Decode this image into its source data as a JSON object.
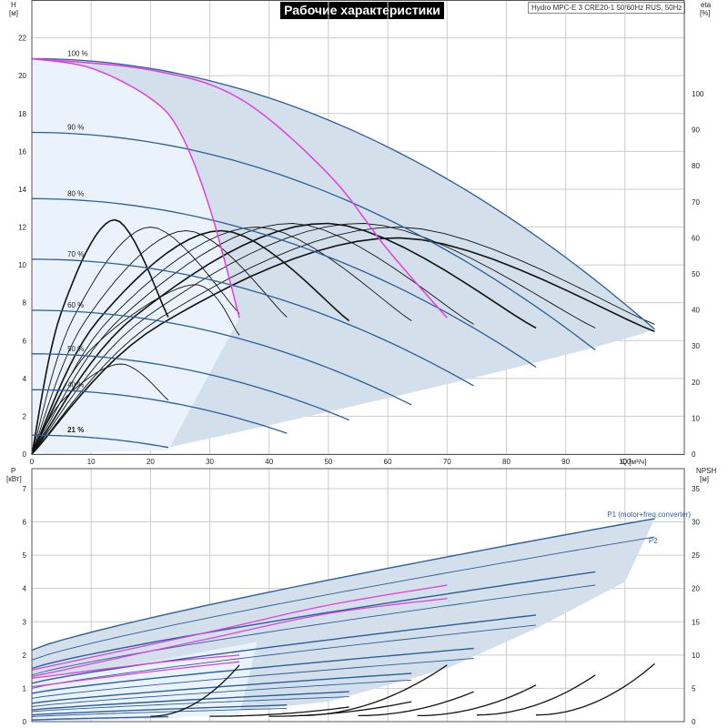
{
  "header": {
    "title": "Рабочие характеристики",
    "product": "Hydro MPC-E 3 CRE20-1 50/60Hz RUS, 50Hz"
  },
  "colors": {
    "envelope_fill": "#d3dfea",
    "light_zone_fill": "#eaf3fb",
    "curve_blue": "#2b5e9a",
    "curve_magenta": "#e040e0",
    "curve_black": "#111111",
    "grid": "#cccccc"
  },
  "chart_data": [
    {
      "type": "line",
      "name": "head-eta",
      "x_axis": {
        "label": "Q [м³/ч]",
        "ticks": [
          0,
          10,
          20,
          30,
          40,
          50,
          60,
          70,
          80,
          90,
          100
        ],
        "range": [
          0,
          110
        ]
      },
      "y_axis_left": {
        "label_line1": "H",
        "label_line2": "[м]",
        "ticks": [
          0,
          2,
          4,
          6,
          8,
          10,
          12,
          14,
          16,
          18,
          20,
          22
        ],
        "range": [
          0,
          24
        ]
      },
      "y_axis_right": {
        "label_line1": "eta",
        "label_line2": "[%]",
        "ticks": [
          0,
          10,
          20,
          30,
          40,
          50,
          60,
          70,
          80,
          90,
          100
        ],
        "range": [
          0,
          126
        ]
      },
      "speed_labels": [
        {
          "text": "100 %",
          "h": 20.9
        },
        {
          "text": "90 %",
          "h": 17.0
        },
        {
          "text": "80 %",
          "h": 13.5
        },
        {
          "text": "70 %",
          "h": 10.3
        },
        {
          "text": "60 %",
          "h": 7.6
        },
        {
          "text": "50 %",
          "h": 5.3
        },
        {
          "text": "40 %",
          "h": 3.4
        },
        {
          "text": "21 %",
          "h": 1.0,
          "bold": true
        }
      ],
      "pump_curves": [
        {
          "speed": 1.0,
          "shutoff_h": 20.9,
          "q_max": 105,
          "h_end": 6.6
        },
        {
          "speed": 0.9,
          "shutoff_h": 17.0,
          "q_max": 95,
          "h_end": 5.5
        },
        {
          "speed": 0.8,
          "shutoff_h": 13.5,
          "q_max": 85,
          "h_end": 4.6
        },
        {
          "speed": 0.7,
          "shutoff_h": 10.3,
          "q_max": 74.5,
          "h_end": 3.6
        },
        {
          "speed": 0.6,
          "shutoff_h": 7.6,
          "q_max": 64,
          "h_end": 2.6
        },
        {
          "speed": 0.5,
          "shutoff_h": 5.3,
          "q_max": 53.5,
          "h_end": 1.8
        },
        {
          "speed": 0.4,
          "shutoff_h": 3.4,
          "q_max": 43,
          "h_end": 1.1
        },
        {
          "speed": 0.21,
          "shutoff_h": 1.0,
          "q_max": 23,
          "h_end": 0.35
        }
      ],
      "magenta_curves": [
        {
          "points": [
            [
              0,
              20.9
            ],
            [
              10,
              20.4
            ],
            [
              20,
              18.8
            ],
            [
              25,
              17.0
            ],
            [
              30,
              13.0
            ],
            [
              35,
              7.2
            ]
          ]
        },
        {
          "points": [
            [
              0,
              20.9
            ],
            [
              20,
              20.3
            ],
            [
              35,
              18.8
            ],
            [
              50,
              14.8
            ],
            [
              60,
              10.8
            ],
            [
              70,
              7.2
            ]
          ]
        }
      ],
      "eta_curves": [
        {
          "q_end": 23,
          "eta_peak": 65,
          "q_peak": 14,
          "eta_end": 38
        },
        {
          "q_end": 35,
          "eta_peak": 63,
          "q_peak": 20,
          "eta_end": 39
        },
        {
          "q_end": 43,
          "eta_peak": 62,
          "q_peak": 26,
          "eta_end": 38
        },
        {
          "q_end": 53.5,
          "eta_peak": 62,
          "q_peak": 32,
          "eta_end": 37
        },
        {
          "q_end": 64,
          "eta_peak": 63,
          "q_peak": 38,
          "eta_end": 37
        },
        {
          "q_end": 74.5,
          "eta_peak": 64,
          "q_peak": 44,
          "eta_end": 36
        },
        {
          "q_end": 85,
          "eta_peak": 64,
          "q_peak": 50,
          "eta_end": 35
        },
        {
          "q_end": 95,
          "eta_peak": 64,
          "q_peak": 56,
          "eta_end": 35
        },
        {
          "q_end": 105,
          "eta_peak": 63,
          "q_peak": 62,
          "eta_end": 36
        },
        {
          "q_end": 105,
          "eta_peak": 60,
          "q_peak": 62,
          "eta_end": 34
        },
        {
          "q_end": 35,
          "eta_peak": 47,
          "q_peak": 27,
          "eta_end": 33
        },
        {
          "q_end": 23,
          "eta_peak": 25,
          "q_peak": 15,
          "eta_end": 15
        }
      ]
    },
    {
      "type": "line",
      "name": "power-npsh",
      "x_axis": {
        "ticks": [],
        "range": [
          0,
          110
        ]
      },
      "y_axis_left": {
        "label_line1": "P",
        "label_line2": "[кВт]",
        "ticks": [
          0,
          1,
          2,
          3,
          4,
          5,
          6,
          7
        ],
        "range": [
          0,
          7.6
        ]
      },
      "y_axis_right": {
        "label_line1": "NPSH",
        "label_line2": "[м]",
        "ticks": [
          0,
          5,
          10,
          15,
          20,
          25,
          30,
          35
        ],
        "range": [
          0,
          38
        ]
      },
      "series_labels": [
        {
          "text": "P1 (motor+freq.converter)",
          "q": 97,
          "p": 6.1
        },
        {
          "text": "P2",
          "q": 104,
          "p": 5.3
        }
      ],
      "power_curves": [
        {
          "q_end": 105,
          "p0": 2.15,
          "p_end": 6.1
        },
        {
          "q_end": 105,
          "p0": 1.85,
          "p_end": 5.55
        },
        {
          "q_end": 95,
          "p0": 1.6,
          "p_end": 4.5
        },
        {
          "q_end": 95,
          "p0": 1.4,
          "p_end": 4.1
        },
        {
          "q_end": 85,
          "p0": 1.15,
          "p_end": 3.2
        },
        {
          "q_end": 85,
          "p0": 1.0,
          "p_end": 2.9
        },
        {
          "q_end": 74.5,
          "p0": 0.85,
          "p_end": 2.2
        },
        {
          "q_end": 74.5,
          "p0": 0.7,
          "p_end": 1.9
        },
        {
          "q_end": 64,
          "p0": 0.55,
          "p_end": 1.45
        },
        {
          "q_end": 64,
          "p0": 0.45,
          "p_end": 1.25
        },
        {
          "q_end": 53.5,
          "p0": 0.35,
          "p_end": 0.9
        },
        {
          "q_end": 53.5,
          "p0": 0.3,
          "p_end": 0.75
        },
        {
          "q_end": 43,
          "p0": 0.2,
          "p_end": 0.5
        },
        {
          "q_end": 43,
          "p0": 0.15,
          "p_end": 0.4
        },
        {
          "q_end": 23,
          "p0": 0.05,
          "p_end": 0.15
        }
      ],
      "magenta_power": [
        {
          "points": [
            [
              0,
              1.3
            ],
            [
              20,
              1.75
            ],
            [
              35,
              2.0
            ]
          ]
        },
        {
          "points": [
            [
              0,
              1.05
            ],
            [
              20,
              1.5
            ],
            [
              35,
              1.8
            ]
          ]
        },
        {
          "points": [
            [
              0,
              1.55
            ],
            [
              30,
              2.7
            ],
            [
              50,
              3.5
            ],
            [
              70,
              4.1
            ]
          ]
        },
        {
          "points": [
            [
              0,
              1.35
            ],
            [
              30,
              2.5
            ],
            [
              50,
              3.25
            ],
            [
              70,
              3.7
            ]
          ]
        }
      ],
      "npsh_curves": [
        {
          "q_start": 20,
          "q_end": 35,
          "n_start": 0.8,
          "n_end": 8.5
        },
        {
          "q_start": 30,
          "q_end": 53.5,
          "n_start": 0.8,
          "n_end": 2.2
        },
        {
          "q_start": 40,
          "q_end": 64,
          "n_start": 0.8,
          "n_end": 3.0
        },
        {
          "q_start": 45,
          "q_end": 70,
          "n_start": 0.9,
          "n_end": 8.5
        },
        {
          "q_start": 55,
          "q_end": 74.5,
          "n_start": 0.9,
          "n_end": 4.5
        },
        {
          "q_start": 65,
          "q_end": 85,
          "n_start": 0.9,
          "n_end": 5.5
        },
        {
          "q_start": 75,
          "q_end": 95,
          "n_start": 1.0,
          "n_end": 7.0
        },
        {
          "q_start": 85,
          "q_end": 105,
          "n_start": 1.0,
          "n_end": 8.7
        }
      ]
    }
  ]
}
